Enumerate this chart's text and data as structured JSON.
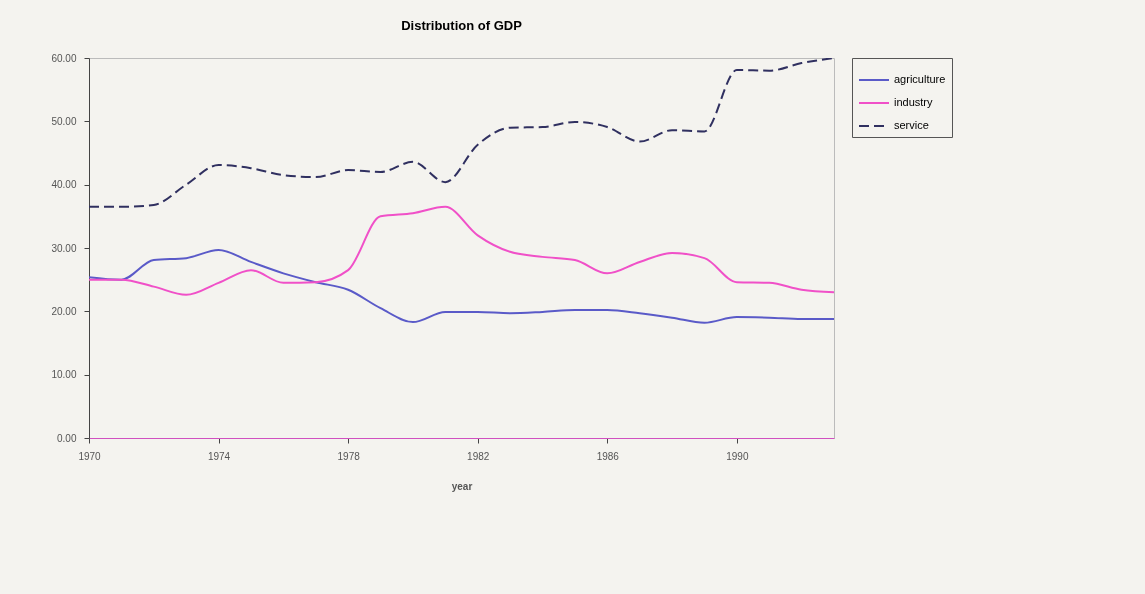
{
  "chart_data": {
    "type": "line",
    "title": "Distribution of GDP",
    "xlabel": "year",
    "x": [
      1970,
      1971,
      1972,
      1973,
      1974,
      1975,
      1976,
      1977,
      1978,
      1979,
      1980,
      1981,
      1982,
      1983,
      1984,
      1985,
      1986,
      1987,
      1988,
      1989,
      1990,
      1991,
      1992,
      1993
    ],
    "series": [
      {
        "name": "agriculture",
        "color": "#5a5ac8",
        "line_style": "solid",
        "values": [
          25.4,
          25,
          28.1,
          28.4,
          29.7,
          27.8,
          26,
          24.6,
          23.4,
          20.5,
          18.3,
          19.9,
          19.9,
          19.7,
          19.9,
          20.2,
          20.2,
          19.7,
          19,
          18.2,
          19.1,
          19,
          18.8,
          18.8
        ]
      },
      {
        "name": "industry",
        "color": "#f050c8",
        "line_style": "solid",
        "values": [
          25,
          25,
          23.9,
          22.6,
          24.5,
          26.5,
          24.5,
          24.6,
          26.5,
          35,
          35.5,
          36.5,
          32,
          29.4,
          28.6,
          28.1,
          26,
          27.8,
          29.2,
          28.4,
          24.6,
          24.5,
          23.4,
          23
        ]
      },
      {
        "name": "service",
        "color": "#303060",
        "line_style": "dashed",
        "values": [
          36.5,
          36.5,
          36.8,
          40,
          43.1,
          42.6,
          41.5,
          41.2,
          42.3,
          42,
          43.6,
          40.4,
          46.3,
          49,
          49.1,
          49.9,
          49.1,
          46.8,
          48.6,
          48.4,
          58.1,
          58,
          59.2,
          60
        ]
      }
    ],
    "xlim": [
      1970,
      1993
    ],
    "xticks": [
      1970,
      1974,
      1978,
      1982,
      1986,
      1990
    ],
    "ylim": [
      0,
      60
    ],
    "yticks": [
      {
        "value": 0,
        "label": "0.00"
      },
      {
        "value": 10,
        "label": "10.00"
      },
      {
        "value": 20,
        "label": "20.00"
      },
      {
        "value": 30,
        "label": "30.00"
      },
      {
        "value": 40,
        "label": "40.00"
      },
      {
        "value": 50,
        "label": "50.00"
      },
      {
        "value": 60,
        "label": "60.00"
      }
    ],
    "grid": false,
    "legend": "right"
  }
}
